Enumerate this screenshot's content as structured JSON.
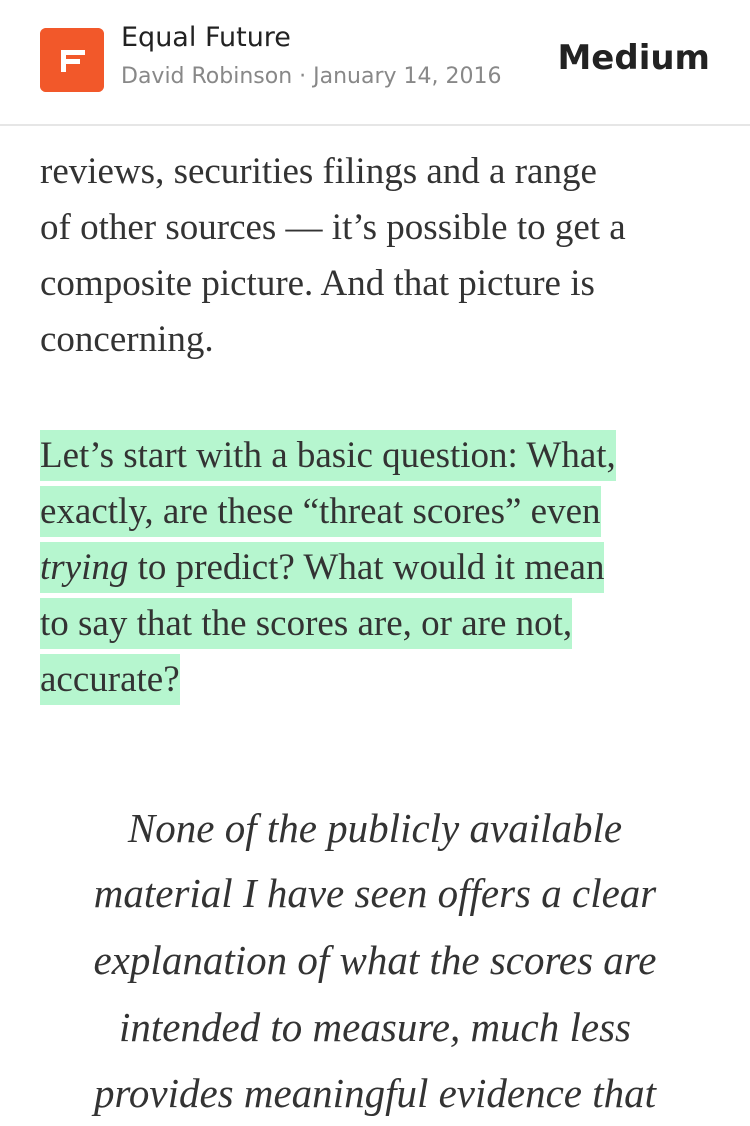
{
  "header": {
    "publication": "Equal Future",
    "byline": "David Robinson · January 14, 2016",
    "brand": "Medium"
  },
  "article": {
    "paragraph": {
      "lines": [
        "reviews, securities filings and a range",
        "of other sources — it’s possible to get a",
        "composite picture. And that picture is",
        "concerning."
      ]
    },
    "highlight": {
      "lines": [
        "Let’s start with a basic question: What,",
        "exactly, are these “threat scores” even",
        "to predict? What would it mean",
        "to say that the scores are, or are not,",
        "accurate?"
      ],
      "emphasis": "trying"
    },
    "quote": {
      "lines": [
        "None of the publicly available",
        "material I have seen offers a clear",
        "explanation of what the scores are",
        "intended to measure, much less",
        "provides meaningful evidence that"
      ]
    }
  }
}
